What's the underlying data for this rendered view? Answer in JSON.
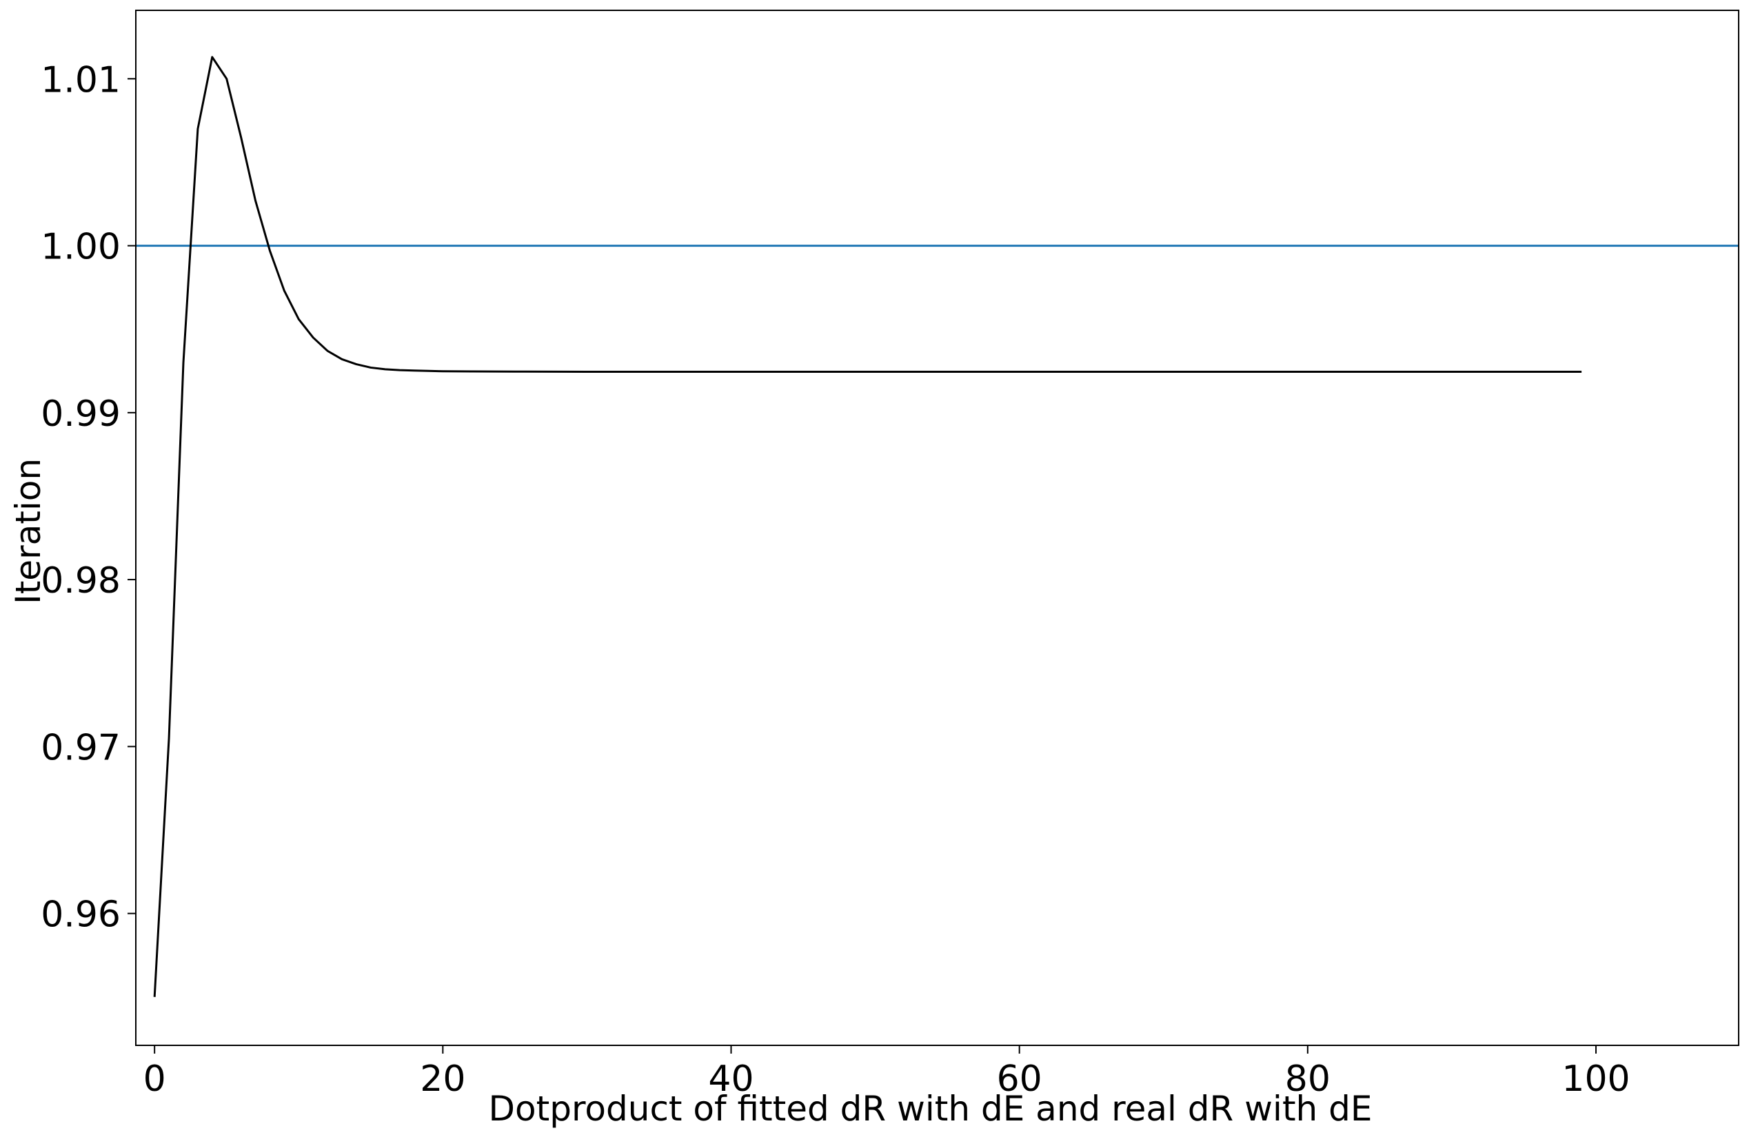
{
  "chart_data": {
    "type": "line",
    "title": "",
    "xlabel": "Dotproduct of fitted dR with dE and real dR with dE",
    "ylabel": "Iteration",
    "xlim": [
      -1.3,
      109.9
    ],
    "ylim": [
      0.9521,
      1.0141
    ],
    "x_ticks": [
      0,
      20,
      40,
      60,
      80,
      100
    ],
    "x_tick_labels": [
      "0",
      "20",
      "40",
      "60",
      "80",
      "100"
    ],
    "y_ticks": [
      0.96,
      0.97,
      0.98,
      0.99,
      1.0,
      1.01
    ],
    "y_tick_labels": [
      "0.96",
      "0.97",
      "0.98",
      "0.99",
      "1.00",
      "1.01"
    ],
    "grid": false,
    "legend": "none",
    "series": [
      {
        "color": "#000000",
        "x": [
          0,
          1,
          2,
          3,
          4,
          5,
          6,
          7,
          8,
          9,
          10,
          11,
          12,
          13,
          14,
          15,
          16,
          17,
          18,
          19,
          20,
          22,
          25,
          30,
          40,
          60,
          80,
          99
        ],
        "y": [
          0.955,
          0.9705,
          0.993,
          1.007,
          1.0113,
          1.01,
          1.0065,
          1.0027,
          0.9997,
          0.9973,
          0.9956,
          0.9945,
          0.9937,
          0.9932,
          0.9929,
          0.9927,
          0.9926,
          0.99255,
          0.99252,
          0.9925,
          0.99248,
          0.99247,
          0.99246,
          0.99245,
          0.99245,
          0.99245,
          0.99245,
          0.99245
        ]
      }
    ],
    "reference_lines": [
      {
        "orientation": "horizontal",
        "y": 1.0,
        "color": "#1f77b4"
      }
    ]
  }
}
